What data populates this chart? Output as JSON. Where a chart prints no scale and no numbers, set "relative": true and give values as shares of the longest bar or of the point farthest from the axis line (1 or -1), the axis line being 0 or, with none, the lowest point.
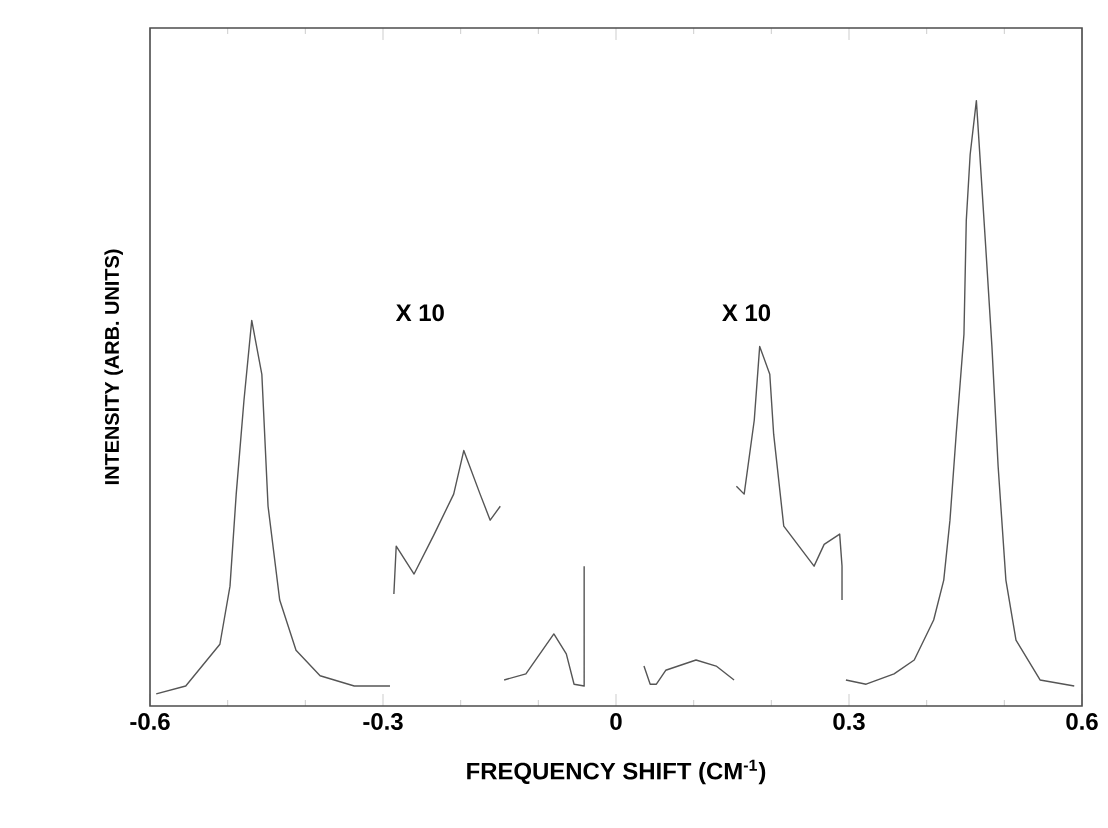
{
  "chart_data": {
    "type": "line",
    "relative": true,
    "xlabel": "FREQUENCY SHIFT (CM$^{-1}$)",
    "ylabel": "INTENSITY (ARB. UNITS)",
    "xlim": [
      -0.6,
      0.6
    ],
    "xticks": [
      {
        "value": -0.6,
        "label": "-0.6"
      },
      {
        "value": -0.3,
        "label": "-0.3"
      },
      0,
      0.3,
      0.6
    ],
    "annotations": [
      "X 10",
      "X 10"
    ],
    "grid": false,
    "marker": "none",
    "line_style": "solid",
    "series": [
      {
        "color": "#555555",
        "x": [
          -0.592,
          -0.554,
          -0.51,
          -0.497,
          -0.489,
          -0.479,
          -0.469,
          -0.456,
          -0.448,
          -0.433,
          -0.412,
          -0.381,
          -0.337,
          -0.291,
          null,
          -0.286,
          -0.283,
          -0.26,
          -0.234,
          -0.209,
          -0.196,
          -0.175,
          -0.162,
          -0.149,
          null,
          -0.144,
          -0.116,
          -0.08,
          -0.064,
          -0.054,
          -0.041,
          -0.041,
          null,
          0.036,
          0.044,
          0.052,
          0.064,
          0.103,
          0.129,
          0.152,
          null,
          0.155,
          0.165,
          0.178,
          0.185,
          0.198,
          0.203,
          0.216,
          0.255,
          0.268,
          0.288,
          0.291,
          0.291,
          null,
          0.296,
          0.322,
          0.358,
          0.384,
          0.409,
          0.422,
          0.43,
          0.438,
          0.448,
          0.451,
          0.456,
          0.464,
          0.476,
          0.484,
          0.492,
          0.502,
          0.515,
          0.546,
          0.59
        ],
        "values": [
          0.02,
          0.033,
          0.102,
          0.198,
          0.35,
          0.505,
          0.637,
          0.548,
          0.33,
          0.175,
          0.092,
          0.05,
          0.033,
          0.033,
          null,
          0.185,
          0.264,
          0.218,
          0.284,
          0.35,
          0.422,
          0.35,
          0.307,
          0.33,
          null,
          0.043,
          0.053,
          0.119,
          0.086,
          0.036,
          0.033,
          0.231,
          null,
          0.066,
          0.036,
          0.036,
          0.059,
          0.076,
          0.066,
          0.043,
          null,
          0.363,
          0.35,
          0.472,
          0.594,
          0.548,
          0.449,
          0.297,
          0.231,
          0.267,
          0.284,
          0.231,
          0.175,
          null,
          0.043,
          0.036,
          0.053,
          0.076,
          0.142,
          0.208,
          0.307,
          0.449,
          0.614,
          0.802,
          0.911,
          1,
          0.759,
          0.594,
          0.396,
          0.208,
          0.109,
          0.043,
          0.033
        ]
      }
    ]
  }
}
